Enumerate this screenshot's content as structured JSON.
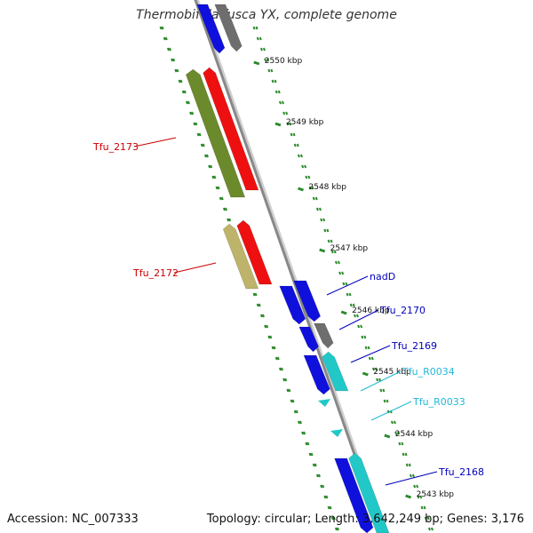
{
  "title": "Thermobifida fusca YX, complete genome",
  "accession_text": "Accession: NC_007333",
  "topology_text": "Topology: circular; Length: 3,642,249 bp; Genes: 3,176",
  "colors": {
    "backbone": "#888888",
    "dotted_track": "#2a8a2a",
    "cds_blue": "#1010dd",
    "cds_gray": "#6e6e6e",
    "cds_olive": "#6b8a2c",
    "cds_red": "#ee1010",
    "cds_tan": "#bdb36a",
    "rna_cyan": "#22c8c8",
    "label_red": "#cc0000",
    "label_blue": "#0000bb",
    "label_cyan": "#22b8d8"
  },
  "ticks": [
    {
      "label": "2550 kbp",
      "kbp": 2550
    },
    {
      "label": "2549 kbp",
      "kbp": 2549
    },
    {
      "label": "2548 kbp",
      "kbp": 2548
    },
    {
      "label": "2547 kbp",
      "kbp": 2547
    },
    {
      "label": "2546 kbp",
      "kbp": 2546
    },
    {
      "label": "2545 kbp",
      "kbp": 2545
    },
    {
      "label": "2544 kbp",
      "kbp": 2544
    },
    {
      "label": "2543 kbp",
      "kbp": 2543
    }
  ],
  "gene_labels": [
    {
      "name": "Tfu_2173",
      "color": "label_red"
    },
    {
      "name": "Tfu_2172",
      "color": "label_red"
    },
    {
      "name": "nadD",
      "color": "label_blue"
    },
    {
      "name": "Tfu_2170",
      "color": "label_blue"
    },
    {
      "name": "Tfu_2169",
      "color": "label_blue"
    },
    {
      "name": "Tfu_R0034",
      "color": "label_cyan"
    },
    {
      "name": "Tfu_R0033",
      "color": "label_cyan"
    },
    {
      "name": "Tfu_2168",
      "color": "label_blue"
    }
  ]
}
